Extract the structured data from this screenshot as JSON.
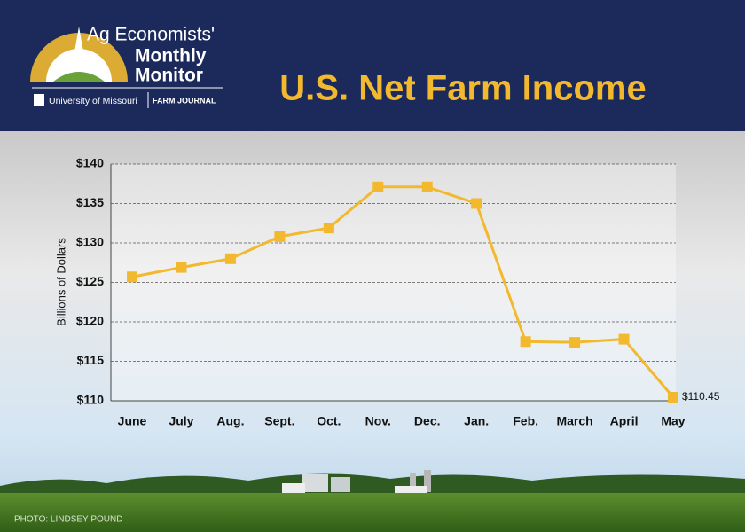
{
  "brand": {
    "line1": "Ag Economists'",
    "line2": "Monthly",
    "line3": "Monitor",
    "university": "University of Missouri",
    "partner": "FARM JOURNAL"
  },
  "photo_credit": "PHOTO: LINDSEY POUND",
  "chart_data": {
    "type": "line",
    "title": "U.S. Net Farm Income",
    "y_label": "Billions of Dollars",
    "categories": [
      "June",
      "July",
      "Aug.",
      "Sept.",
      "Oct.",
      "Nov.",
      "Dec.",
      "Jan.",
      "Feb.",
      "March",
      "April",
      "May"
    ],
    "values": [
      125.7,
      126.9,
      128.0,
      130.8,
      131.9,
      137.1,
      137.1,
      135.0,
      117.5,
      117.4,
      117.8,
      110.45
    ],
    "value_labels": [
      null,
      null,
      null,
      null,
      null,
      null,
      null,
      null,
      null,
      null,
      null,
      "$110.45"
    ],
    "color": "#f2b92f",
    "ylim": [
      110,
      140
    ],
    "yticks": [
      {
        "value": 110,
        "label": "$110"
      },
      {
        "value": 115,
        "label": "$115"
      },
      {
        "value": 120,
        "label": "$120"
      },
      {
        "value": 125,
        "label": "$125"
      },
      {
        "value": 130,
        "label": "$130"
      },
      {
        "value": 135,
        "label": "$135"
      },
      {
        "value": 140,
        "label": "$140"
      }
    ],
    "grid": true
  }
}
